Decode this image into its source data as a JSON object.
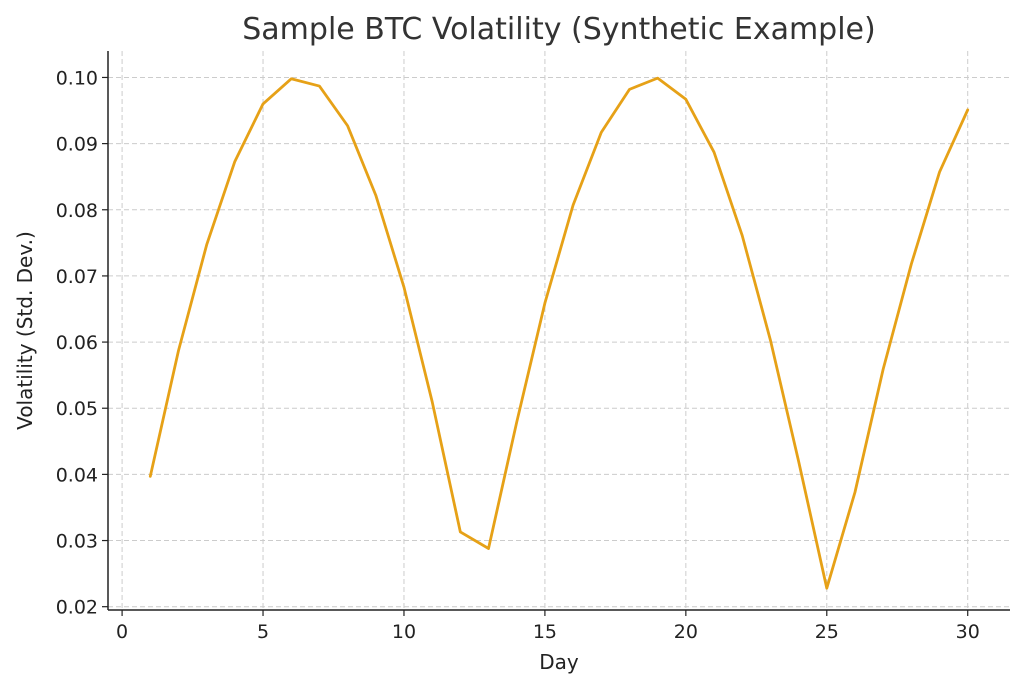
{
  "chart_data": {
    "type": "line",
    "title": "Sample BTC Volatility (Synthetic Example)",
    "xlabel": "Day",
    "ylabel": "Volatility (Std. Dev.)",
    "xlim": [
      -0.5,
      31.5
    ],
    "ylim": [
      0.0195,
      0.104
    ],
    "x_ticks": [
      0,
      5,
      10,
      15,
      20,
      25,
      30
    ],
    "x_tick_labels": [
      "0",
      "5",
      "10",
      "15",
      "20",
      "25",
      "30"
    ],
    "y_ticks": [
      0.02,
      0.03,
      0.04,
      0.05,
      0.06,
      0.07,
      0.08,
      0.09,
      0.1
    ],
    "y_tick_labels": [
      "0.02",
      "0.03",
      "0.04",
      "0.05",
      "0.06",
      "0.07",
      "0.08",
      "0.09",
      "0.10"
    ],
    "grid": true,
    "series": [
      {
        "color": "#e6a117",
        "x": [
          1,
          2,
          3,
          4,
          5,
          6,
          7,
          8,
          9,
          10,
          11,
          12,
          13,
          14,
          15,
          16,
          17,
          18,
          19,
          20,
          21,
          22,
          23,
          24,
          25,
          26,
          27,
          28,
          29,
          30
        ],
        "y": [
          0.0397,
          0.0587,
          0.0747,
          0.0873,
          0.096,
          0.0998,
          0.0987,
          0.0927,
          0.0822,
          0.0683,
          0.051,
          0.0313,
          0.0288,
          0.0479,
          0.0659,
          0.0807,
          0.0917,
          0.0982,
          0.0999,
          0.0967,
          0.0887,
          0.0761,
          0.0603,
          0.042,
          0.0228,
          0.0373,
          0.0559,
          0.0718,
          0.0857,
          0.0951
        ]
      }
    ]
  }
}
